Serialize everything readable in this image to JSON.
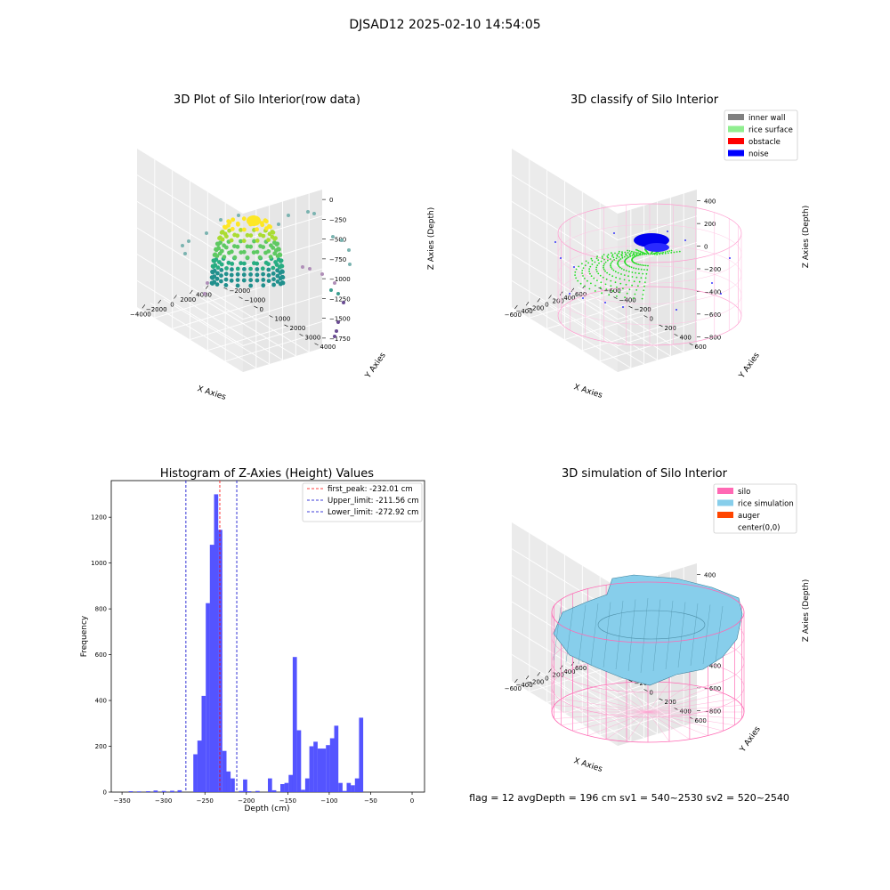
{
  "figure": {
    "suptitle": "DJSAD12 2025-02-10 14:54:05",
    "footer": "flag = 12   avgDepth = 196 cm  sv1 = 540~2530  sv2 = 520~2540"
  },
  "chart_data": [
    {
      "type": "scatter",
      "title": "3D Plot of Silo Interior(row data)",
      "xlabel": "X Axies",
      "ylabel": "Y Axies",
      "zlabel": "Z Axies (Depth)",
      "x_ticks": [
        "−4000",
        "−2000",
        "0",
        "2000",
        "4000"
      ],
      "y_ticks": [
        "−2000",
        "−1000",
        "0",
        "1000",
        "2000",
        "3000",
        "4000"
      ],
      "z_ticks": [
        "0",
        "−250",
        "−500",
        "−750",
        "−1000",
        "−1250",
        "−1500",
        "−1750"
      ],
      "colormap": "viridis",
      "grid": true
    },
    {
      "type": "scatter",
      "title": "3D classify of Silo Interior",
      "xlabel": "X Axies",
      "ylabel": "Y Axies",
      "zlabel": "Z Axies (Depth)",
      "x_ticks": [
        "−600",
        "−400",
        "−200",
        "0",
        "200",
        "400",
        "600"
      ],
      "y_ticks": [
        "−600",
        "−400",
        "−200",
        "0",
        "200",
        "400",
        "600"
      ],
      "z_ticks": [
        "400",
        "200",
        "0",
        "−200",
        "−400",
        "−600",
        "−800"
      ],
      "legend": [
        {
          "label": "inner wall",
          "color": "#808080"
        },
        {
          "label": "rice surface",
          "color": "#90ee90"
        },
        {
          "label": "obstacle",
          "color": "#ff0000"
        },
        {
          "label": "noise",
          "color": "#0000ff"
        }
      ],
      "legend_position": "top-right",
      "grid": true
    },
    {
      "type": "bar",
      "title": "Histogram of Z-Axies (Height) Values",
      "xlabel": "Depth (cm)",
      "ylabel": "Frequency",
      "xlim": [
        -350,
        0
      ],
      "ylim": [
        0,
        1300
      ],
      "x_ticks": [
        "−350",
        "−300",
        "−250",
        "−200",
        "−150",
        "−100",
        "−50",
        "0"
      ],
      "y_ticks": [
        "0",
        "200",
        "400",
        "600",
        "800",
        "1000",
        "1200"
      ],
      "bar_color": "#4b4bff",
      "bins": [
        {
          "x": -342,
          "w": 5,
          "v": 4
        },
        {
          "x": -332,
          "w": 5,
          "v": 3
        },
        {
          "x": -321,
          "w": 5,
          "v": 4
        },
        {
          "x": -312,
          "w": 5,
          "v": 7
        },
        {
          "x": -302,
          "w": 5,
          "v": 5
        },
        {
          "x": -292,
          "w": 5,
          "v": 6
        },
        {
          "x": -283,
          "w": 5,
          "v": 8
        },
        {
          "x": -264,
          "w": 5,
          "v": 165
        },
        {
          "x": -259,
          "w": 5,
          "v": 225
        },
        {
          "x": -254,
          "w": 5,
          "v": 420
        },
        {
          "x": -249,
          "w": 5,
          "v": 825
        },
        {
          "x": -244,
          "w": 5,
          "v": 1080
        },
        {
          "x": -239,
          "w": 5,
          "v": 1300
        },
        {
          "x": -234,
          "w": 5,
          "v": 1145
        },
        {
          "x": -229,
          "w": 5,
          "v": 180
        },
        {
          "x": -224,
          "w": 5,
          "v": 90
        },
        {
          "x": -219,
          "w": 5,
          "v": 60
        },
        {
          "x": -209,
          "w": 5,
          "v": 5
        },
        {
          "x": -204,
          "w": 5,
          "v": 55
        },
        {
          "x": -199,
          "w": 5,
          "v": 4
        },
        {
          "x": -189,
          "w": 5,
          "v": 5
        },
        {
          "x": -174,
          "w": 5,
          "v": 60
        },
        {
          "x": -169,
          "w": 5,
          "v": 8
        },
        {
          "x": -159,
          "w": 5,
          "v": 35
        },
        {
          "x": -154,
          "w": 5,
          "v": 40
        },
        {
          "x": -149,
          "w": 5,
          "v": 75
        },
        {
          "x": -144,
          "w": 5,
          "v": 590
        },
        {
          "x": -139,
          "w": 5,
          "v": 270
        },
        {
          "x": -134,
          "w": 5,
          "v": 10
        },
        {
          "x": -129,
          "w": 5,
          "v": 60
        },
        {
          "x": -124,
          "w": 5,
          "v": 200
        },
        {
          "x": -119,
          "w": 5,
          "v": 220
        },
        {
          "x": -114,
          "w": 5,
          "v": 190
        },
        {
          "x": -109,
          "w": 5,
          "v": 190
        },
        {
          "x": -104,
          "w": 5,
          "v": 205
        },
        {
          "x": -99,
          "w": 5,
          "v": 235
        },
        {
          "x": -94,
          "w": 5,
          "v": 290
        },
        {
          "x": -89,
          "w": 5,
          "v": 40
        },
        {
          "x": -84,
          "w": 5,
          "v": 5
        },
        {
          "x": -79,
          "w": 5,
          "v": 40
        },
        {
          "x": -74,
          "w": 5,
          "v": 30
        },
        {
          "x": -69,
          "w": 5,
          "v": 60
        },
        {
          "x": -64,
          "w": 5,
          "v": 325
        }
      ],
      "vlines": [
        {
          "label": "first_peak: -232.01 cm",
          "x": -232.01,
          "color": "#ff0000"
        },
        {
          "label": "Upper_limit: -211.56 cm",
          "x": -211.56,
          "color": "#0000cc"
        },
        {
          "label": "Lower_limit: -272.92 cm",
          "x": -272.92,
          "color": "#0000cc"
        }
      ],
      "legend_position": "top-right"
    },
    {
      "type": "surface",
      "title": "3D simulation of Silo Interior",
      "xlabel": "X Axies",
      "ylabel": "Y Axies",
      "zlabel": "Z Axies (Depth)",
      "x_ticks": [
        "−600",
        "−400",
        "−200",
        "0",
        "200",
        "400",
        "600"
      ],
      "y_ticks": [
        "−600",
        "−400",
        "−200",
        "0",
        "200",
        "400",
        "600"
      ],
      "z_ticks": [
        "400",
        "200",
        "0",
        "−200",
        "−400",
        "−600",
        "−800"
      ],
      "legend": [
        {
          "label": "silo",
          "color": "#ff69b4"
        },
        {
          "label": "rice simulation",
          "color": "#87ceeb"
        },
        {
          "label": "auger",
          "color": "#ff4500"
        },
        {
          "label": "center(0,0)",
          "color": ""
        }
      ],
      "legend_position": "top-right",
      "grid": true
    }
  ]
}
